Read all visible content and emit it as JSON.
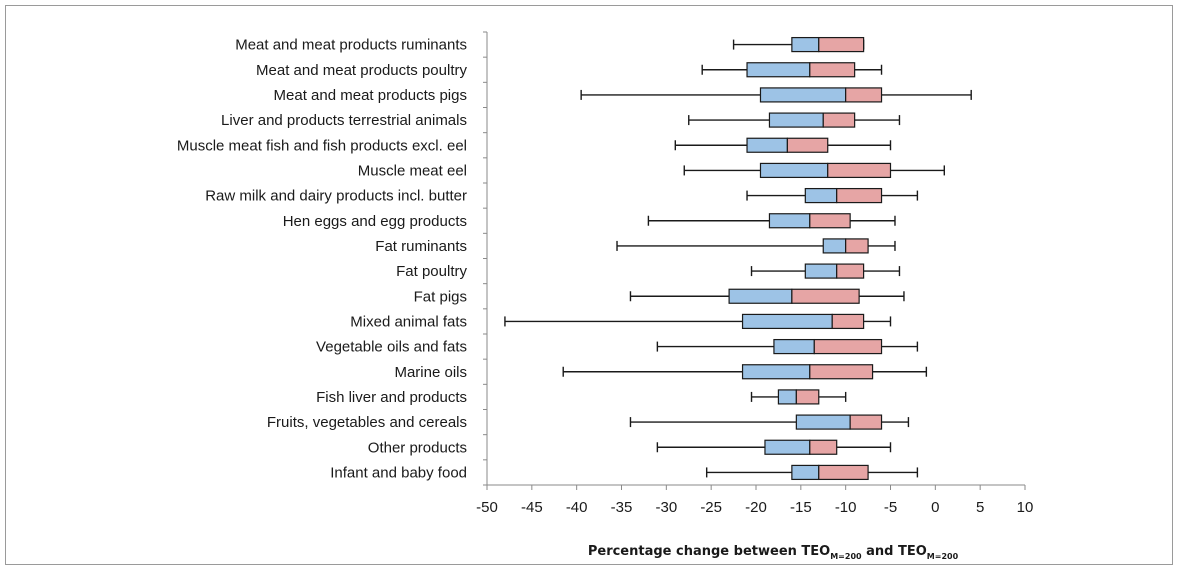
{
  "chart_data": {
    "type": "boxplot",
    "xlabel": {
      "prefix": "Percentage change between TEO",
      "sub1": "M=200",
      "middle": " and TEO",
      "sub2": "M=200"
    },
    "xlim": [
      -50,
      10
    ],
    "xticks": [
      -50,
      -45,
      -40,
      -35,
      -30,
      -25,
      -20,
      -15,
      -10,
      -5,
      0,
      5,
      10
    ],
    "colors": {
      "lower_box": "#9dc3e6",
      "upper_box": "#e6a5a5",
      "box_edge": "#1a1a1a",
      "whisker": "#1a1a1a"
    },
    "categories": [
      {
        "label": "Meat and meat products ruminants",
        "min": -22.5,
        "q1": -16,
        "median": -13,
        "q3": -8,
        "max": -8
      },
      {
        "label": "Meat and meat products poultry",
        "min": -26,
        "q1": -21,
        "median": -14,
        "q3": -9,
        "max": -6
      },
      {
        "label": "Meat and meat products pigs",
        "min": -39.5,
        "q1": -19.5,
        "median": -10,
        "q3": -6,
        "max": 4
      },
      {
        "label": "Liver and products terrestrial animals",
        "min": -27.5,
        "q1": -18.5,
        "median": -12.5,
        "q3": -9,
        "max": -4
      },
      {
        "label": "Muscle meat fish and fish products excl. eel",
        "min": -29,
        "q1": -21,
        "median": -16.5,
        "q3": -12,
        "max": -5
      },
      {
        "label": "Muscle meat eel",
        "min": -28,
        "q1": -19.5,
        "median": -12,
        "q3": -5,
        "max": 1
      },
      {
        "label": "Raw milk and dairy products incl. butter",
        "min": -21,
        "q1": -14.5,
        "median": -11,
        "q3": -6,
        "max": -2
      },
      {
        "label": "Hen eggs and egg products",
        "min": -32,
        "q1": -18.5,
        "median": -14,
        "q3": -9.5,
        "max": -4.5
      },
      {
        "label": "Fat ruminants",
        "min": -35.5,
        "q1": -12.5,
        "median": -10,
        "q3": -7.5,
        "max": -4.5
      },
      {
        "label": "Fat poultry",
        "min": -20.5,
        "q1": -14.5,
        "median": -11,
        "q3": -8,
        "max": -4
      },
      {
        "label": "Fat pigs",
        "min": -34,
        "q1": -23,
        "median": -16,
        "q3": -8.5,
        "max": -3.5
      },
      {
        "label": "Mixed animal fats",
        "min": -48,
        "q1": -21.5,
        "median": -11.5,
        "q3": -8,
        "max": -5
      },
      {
        "label": "Vegetable oils and fats",
        "min": -31,
        "q1": -18,
        "median": -13.5,
        "q3": -6,
        "max": -2
      },
      {
        "label": "Marine oils",
        "min": -41.5,
        "q1": -21.5,
        "median": -14,
        "q3": -7,
        "max": -1
      },
      {
        "label": "Fish liver and products",
        "min": -20.5,
        "q1": -17.5,
        "median": -15.5,
        "q3": -13,
        "max": -10
      },
      {
        "label": "Fruits, vegetables and cereals",
        "min": -34,
        "q1": -15.5,
        "median": -9.5,
        "q3": -6,
        "max": -3
      },
      {
        "label": "Other products",
        "min": -31,
        "q1": -19,
        "median": -14,
        "q3": -11,
        "max": -5
      },
      {
        "label": "Infant and baby food",
        "min": -25.5,
        "q1": -16,
        "median": -13,
        "q3": -7.5,
        "max": -2
      }
    ]
  }
}
